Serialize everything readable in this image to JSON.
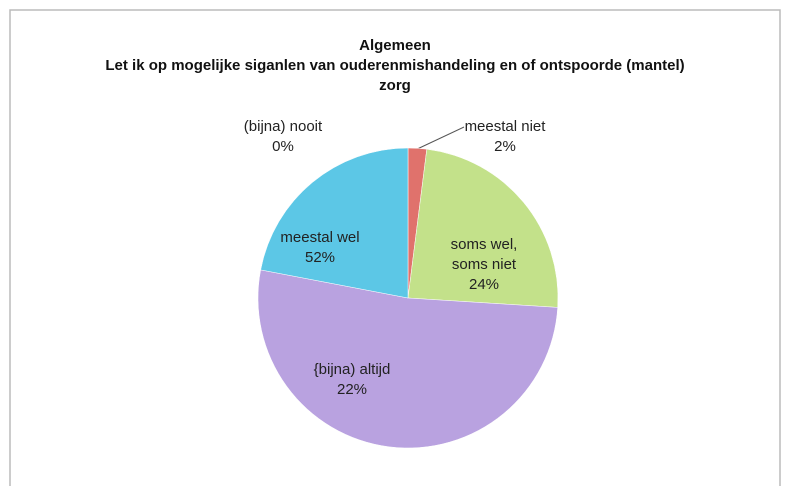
{
  "chart_data": {
    "type": "pie",
    "title": "Algemeen",
    "subtitle": "Let ik op mogelijke siganlen van ouderenmishandeling en of ontspoorde (mantel) zorg",
    "categories": [
      "(bijna) nooit",
      "meestal niet",
      "soms wel, soms niet",
      "meestal wel",
      "{bijna) altijd"
    ],
    "values": [
      0,
      2,
      24,
      52,
      22
    ],
    "value_labels": [
      "0%",
      "2%",
      "24%",
      "52%",
      "22%"
    ],
    "colors": [
      "#4f81bd",
      "#e0726c",
      "#c3e18a",
      "#b9a2e0",
      "#5cc7e6"
    ]
  }
}
